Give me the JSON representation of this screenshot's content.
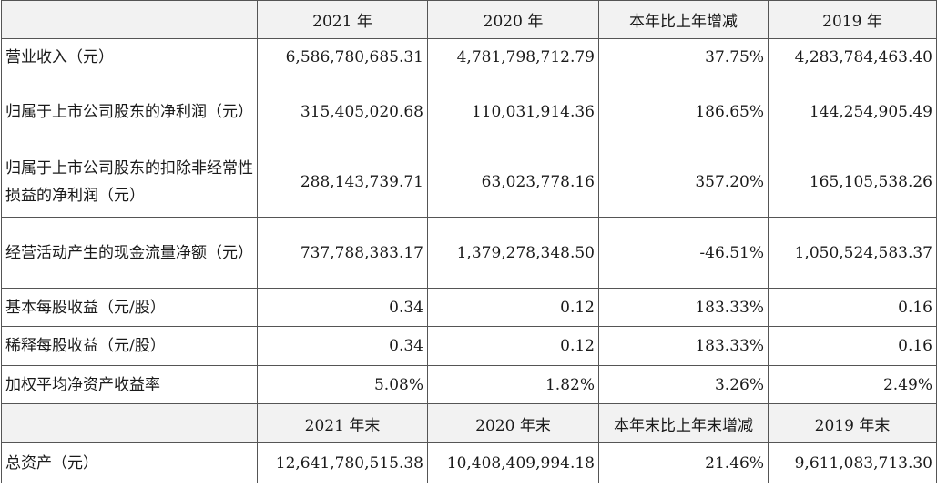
{
  "header1": [
    "",
    "2021 年",
    "2020 年",
    "本年比上年增减",
    "2019 年"
  ],
  "rows": [
    {
      "label": "营业收入（元）",
      "v2021": "6,586,780,685.31",
      "v2020": "4,781,798,712.79",
      "change": "37.75%",
      "v2019": "4,283,784,463.40"
    },
    {
      "label": "归属于上市公司股东的净利润（元）",
      "v2021": "315,405,020.68",
      "v2020": "110,031,914.36",
      "change": "186.65%",
      "v2019": "144,254,905.49"
    },
    {
      "label": "归属于上市公司股东的扣除非经常性损益的净利润（元）",
      "v2021": "288,143,739.71",
      "v2020": "63,023,778.16",
      "change": "357.20%",
      "v2019": "165,105,538.26"
    },
    {
      "label": "经营活动产生的现金流量净额（元）",
      "v2021": "737,788,383.17",
      "v2020": "1,379,278,348.50",
      "change": "-46.51%",
      "v2019": "1,050,524,583.37"
    },
    {
      "label": "基本每股收益（元/股）",
      "v2021": "0.34",
      "v2020": "0.12",
      "change": "183.33%",
      "v2019": "0.16"
    },
    {
      "label": "稀释每股收益（元/股）",
      "v2021": "0.34",
      "v2020": "0.12",
      "change": "183.33%",
      "v2019": "0.16"
    },
    {
      "label": "加权平均净资产收益率",
      "v2021": "5.08%",
      "v2020": "1.82%",
      "change": "3.26%",
      "v2019": "2.49%"
    }
  ],
  "header2": [
    "",
    "2021 年末",
    "2020 年末",
    "本年末比上年末增减",
    "2019 年末"
  ],
  "rows2": [
    {
      "label": "总资产（元）",
      "v2021": "12,641,780,515.38",
      "v2020": "10,408,409,994.18",
      "change": "21.46%",
      "v2019": "9,611,083,713.30"
    }
  ]
}
